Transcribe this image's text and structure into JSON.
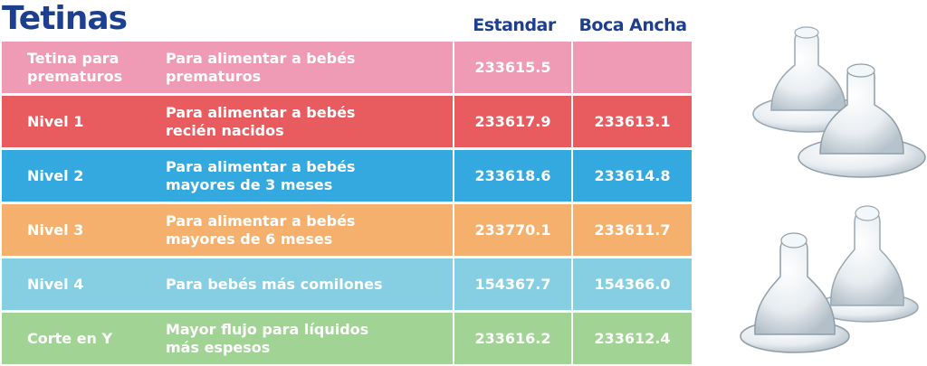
{
  "title": "Tetinas",
  "columns": {
    "standard": "Estandar",
    "wide": "Boca Ancha"
  },
  "rows": [
    {
      "name_line1": "Tetina para",
      "name_line2": "prematuros",
      "desc_line1": "Para alimentar a bebés",
      "desc_line2": "prematuros",
      "standard": "233615.5",
      "wide": "",
      "color": "#ef9bb6"
    },
    {
      "name_line1": "Nivel 1",
      "name_line2": "",
      "desc_line1": "Para alimentar a bebés",
      "desc_line2": "recién nacidos",
      "standard": "233617.9",
      "wide": "233613.1",
      "color": "#e85c5f"
    },
    {
      "name_line1": "Nivel 2",
      "name_line2": "",
      "desc_line1": "Para alimentar a bebés",
      "desc_line2": "mayores de 3 meses",
      "standard": "233618.6",
      "wide": "233614.8",
      "color": "#33a9e0"
    },
    {
      "name_line1": "Nivel 3",
      "name_line2": "",
      "desc_line1": "Para alimentar a bebés",
      "desc_line2": "mayores de 6 meses",
      "standard": "233770.1",
      "wide": "233611.7",
      "color": "#f5b06d"
    },
    {
      "name_line1": "Nivel 4",
      "name_line2": "",
      "desc_line1": "Para bebés más comilones",
      "desc_line2": "",
      "standard": "154367.7",
      "wide": "154366.0",
      "color": "#86cfe2"
    },
    {
      "name_line1": "Corte en Y",
      "name_line2": "",
      "desc_line1": "Mayor flujo para líquidos",
      "desc_line2": "más espesos",
      "standard": "233616.2",
      "wide": "233612.4",
      "color": "#a1d394"
    }
  ]
}
